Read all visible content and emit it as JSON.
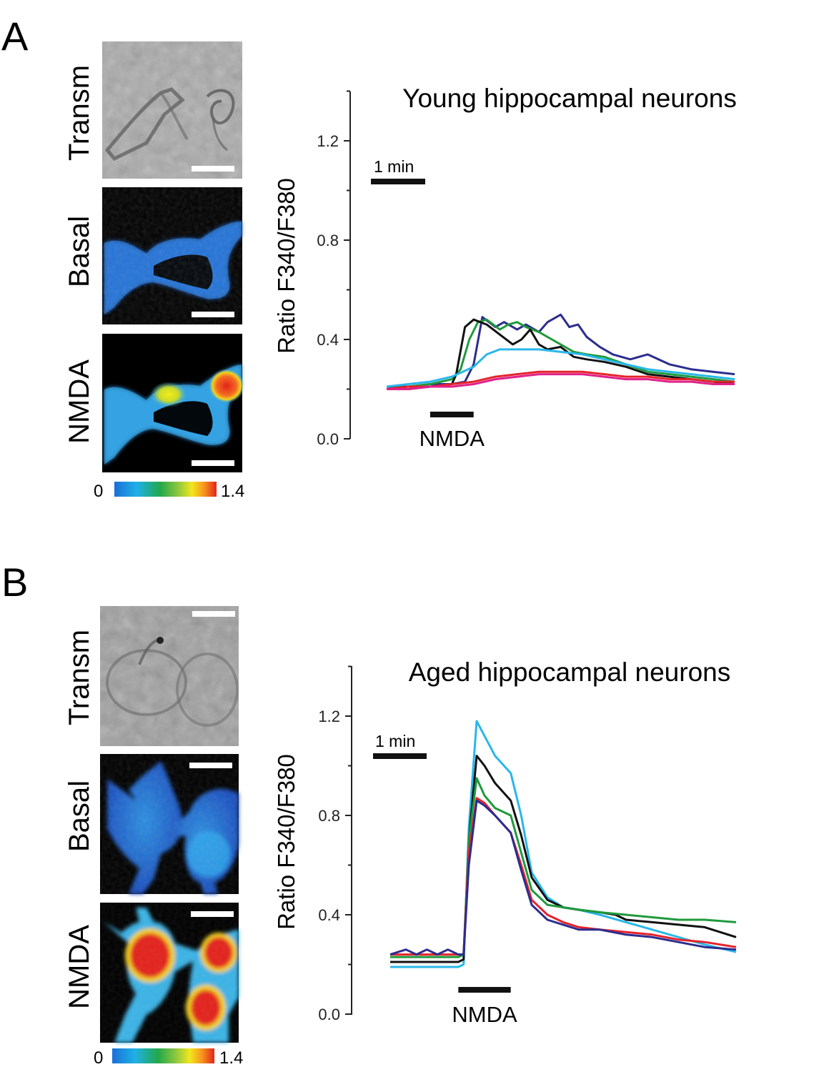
{
  "panels": [
    {
      "letter": "A",
      "micrograph_labels": [
        "Transm",
        "Basal",
        "NMDA"
      ],
      "colorbar": {
        "min": "0",
        "max": "1.4"
      },
      "chart": {
        "title": "Young hippocampal neurons",
        "ylabel": "Ratio F340/F380",
        "y_ticks": [
          "0.0",
          "0.4",
          "0.8",
          "1.2"
        ],
        "scale_bar_label": "1 min",
        "stimulus_label": "NMDA"
      }
    },
    {
      "letter": "B",
      "micrograph_labels": [
        "Transm",
        "Basal",
        "NMDA"
      ],
      "colorbar": {
        "min": "0",
        "max": "1.4"
      },
      "chart": {
        "title": "Aged hippocampal neurons",
        "ylabel": "Ratio F340/F380",
        "y_ticks": [
          "0.0",
          "0.4",
          "0.8",
          "1.2"
        ],
        "scale_bar_label": "1 min",
        "stimulus_label": "NMDA"
      }
    }
  ],
  "chart_data": [
    {
      "type": "line",
      "title": "Young hippocampal neurons",
      "xlabel": "",
      "ylabel": "Ratio F340/F380",
      "ylim": [
        0,
        1.4
      ],
      "xlim_min": [
        0,
        8
      ],
      "stimulus": {
        "label": "NMDA",
        "start_min": 1.0,
        "end_min": 2.0
      },
      "series": [
        {
          "name": "dark blue",
          "color": "#2b2d8f",
          "x": [
            0,
            0.5,
            1.0,
            1.5,
            1.8,
            2.0,
            2.2,
            2.5,
            2.7,
            3.0,
            3.2,
            3.5,
            3.7,
            4.0,
            4.2,
            4.4,
            4.6,
            4.9,
            5.2,
            5.6,
            6.0,
            6.5,
            7.0,
            7.5,
            8.0
          ],
          "y": [
            0.21,
            0.21,
            0.22,
            0.22,
            0.23,
            0.3,
            0.49,
            0.45,
            0.47,
            0.44,
            0.46,
            0.43,
            0.47,
            0.5,
            0.45,
            0.46,
            0.41,
            0.37,
            0.34,
            0.32,
            0.34,
            0.3,
            0.28,
            0.27,
            0.26
          ]
        },
        {
          "name": "green",
          "color": "#1f9a3c",
          "x": [
            0,
            0.5,
            1.0,
            1.5,
            1.7,
            1.9,
            2.1,
            2.3,
            2.6,
            2.8,
            3.0,
            3.2,
            3.5,
            3.8,
            4.0,
            4.3,
            4.6,
            5.0,
            5.5,
            6.0,
            6.5,
            7.0,
            7.5,
            8.0
          ],
          "y": [
            0.2,
            0.21,
            0.22,
            0.24,
            0.28,
            0.4,
            0.47,
            0.48,
            0.44,
            0.46,
            0.47,
            0.45,
            0.43,
            0.4,
            0.38,
            0.35,
            0.34,
            0.33,
            0.3,
            0.27,
            0.26,
            0.25,
            0.24,
            0.23
          ]
        },
        {
          "name": "black",
          "color": "#111111",
          "x": [
            0,
            0.5,
            1.0,
            1.5,
            1.6,
            1.8,
            2.0,
            2.3,
            2.6,
            2.9,
            3.1,
            3.3,
            3.5,
            3.7,
            4.0,
            4.3,
            4.6,
            5.0,
            5.5,
            6.0,
            6.5,
            7.0,
            7.5,
            8.0
          ],
          "y": [
            0.2,
            0.2,
            0.21,
            0.22,
            0.26,
            0.45,
            0.48,
            0.46,
            0.42,
            0.38,
            0.4,
            0.44,
            0.38,
            0.36,
            0.37,
            0.33,
            0.32,
            0.31,
            0.29,
            0.26,
            0.25,
            0.24,
            0.23,
            0.22
          ]
        },
        {
          "name": "light blue",
          "color": "#29b7ea",
          "x": [
            0,
            0.5,
            1.0,
            1.5,
            2.0,
            2.3,
            2.6,
            3.0,
            3.5,
            4.0,
            4.5,
            5.0,
            5.5,
            6.0,
            6.5,
            7.0,
            7.5,
            8.0
          ],
          "y": [
            0.21,
            0.22,
            0.23,
            0.25,
            0.29,
            0.34,
            0.36,
            0.36,
            0.36,
            0.35,
            0.34,
            0.32,
            0.3,
            0.28,
            0.27,
            0.26,
            0.25,
            0.24
          ]
        },
        {
          "name": "red",
          "color": "#e5232b",
          "x": [
            0,
            0.5,
            1.0,
            1.5,
            2.0,
            2.5,
            3.0,
            3.5,
            4.0,
            4.5,
            5.0,
            5.5,
            6.0,
            6.5,
            7.0,
            7.5,
            8.0
          ],
          "y": [
            0.2,
            0.21,
            0.21,
            0.22,
            0.23,
            0.25,
            0.26,
            0.27,
            0.27,
            0.27,
            0.26,
            0.25,
            0.25,
            0.24,
            0.24,
            0.23,
            0.23
          ]
        },
        {
          "name": "magenta",
          "color": "#e0218a",
          "x": [
            0,
            0.5,
            1.0,
            1.5,
            2.0,
            2.5,
            3.0,
            3.5,
            4.0,
            4.5,
            5.0,
            5.5,
            6.0,
            6.5,
            7.0,
            7.5,
            8.0
          ],
          "y": [
            0.2,
            0.2,
            0.21,
            0.21,
            0.22,
            0.24,
            0.25,
            0.26,
            0.26,
            0.26,
            0.25,
            0.24,
            0.24,
            0.23,
            0.23,
            0.22,
            0.22
          ]
        }
      ]
    },
    {
      "type": "line",
      "title": "Aged hippocampal neurons",
      "xlabel": "",
      "ylabel": "Ratio F340/F380",
      "ylim": [
        0,
        1.4
      ],
      "xlim_min": [
        0,
        6.6
      ],
      "stimulus": {
        "label": "NMDA",
        "start_min": 1.3,
        "end_min": 2.3
      },
      "series": [
        {
          "name": "light blue",
          "color": "#29b7ea",
          "x": [
            0,
            1.3,
            1.4,
            1.5,
            1.65,
            1.8,
            2.0,
            2.3,
            2.5,
            2.7,
            3.0,
            3.3,
            3.6,
            4.0,
            4.5,
            5.0,
            5.5,
            6.0,
            6.6
          ],
          "y": [
            0.19,
            0.19,
            0.2,
            0.75,
            1.18,
            1.12,
            1.04,
            0.97,
            0.8,
            0.57,
            0.47,
            0.43,
            0.42,
            0.4,
            0.37,
            0.34,
            0.31,
            0.28,
            0.25
          ]
        },
        {
          "name": "black",
          "color": "#111111",
          "x": [
            0,
            1.3,
            1.4,
            1.5,
            1.65,
            1.8,
            2.0,
            2.3,
            2.5,
            2.7,
            3.0,
            3.3,
            3.6,
            4.0,
            4.3,
            4.5,
            5.0,
            5.5,
            6.0,
            6.6
          ],
          "y": [
            0.21,
            0.21,
            0.22,
            0.7,
            1.04,
            1.0,
            0.93,
            0.86,
            0.72,
            0.55,
            0.46,
            0.43,
            0.42,
            0.41,
            0.4,
            0.38,
            0.37,
            0.36,
            0.35,
            0.31
          ]
        },
        {
          "name": "green",
          "color": "#1f9a3c",
          "x": [
            0,
            1.3,
            1.4,
            1.5,
            1.65,
            1.8,
            2.0,
            2.3,
            2.5,
            2.7,
            3.0,
            3.3,
            3.6,
            4.0,
            4.5,
            5.0,
            5.5,
            6.0,
            6.6
          ],
          "y": [
            0.23,
            0.23,
            0.24,
            0.7,
            0.95,
            0.88,
            0.83,
            0.8,
            0.65,
            0.5,
            0.44,
            0.43,
            0.42,
            0.41,
            0.4,
            0.39,
            0.38,
            0.38,
            0.37
          ]
        },
        {
          "name": "red",
          "color": "#e5232b",
          "x": [
            0,
            1.3,
            1.4,
            1.5,
            1.65,
            1.8,
            2.0,
            2.3,
            2.5,
            2.7,
            3.0,
            3.3,
            3.6,
            4.0,
            4.5,
            5.0,
            5.5,
            6.0,
            6.6
          ],
          "y": [
            0.24,
            0.24,
            0.24,
            0.65,
            0.87,
            0.85,
            0.8,
            0.73,
            0.6,
            0.46,
            0.4,
            0.37,
            0.35,
            0.34,
            0.33,
            0.32,
            0.3,
            0.29,
            0.27
          ]
        },
        {
          "name": "dark blue",
          "color": "#2b2d8f",
          "x": [
            0,
            0.3,
            0.5,
            0.7,
            0.9,
            1.1,
            1.3,
            1.4,
            1.5,
            1.65,
            1.8,
            2.0,
            2.3,
            2.5,
            2.7,
            3.0,
            3.3,
            3.6,
            4.0,
            4.5,
            5.0,
            5.5,
            6.0,
            6.6
          ],
          "y": [
            0.24,
            0.26,
            0.24,
            0.26,
            0.24,
            0.26,
            0.24,
            0.24,
            0.6,
            0.86,
            0.84,
            0.8,
            0.73,
            0.58,
            0.44,
            0.38,
            0.36,
            0.34,
            0.34,
            0.32,
            0.31,
            0.29,
            0.27,
            0.26
          ]
        }
      ]
    }
  ]
}
